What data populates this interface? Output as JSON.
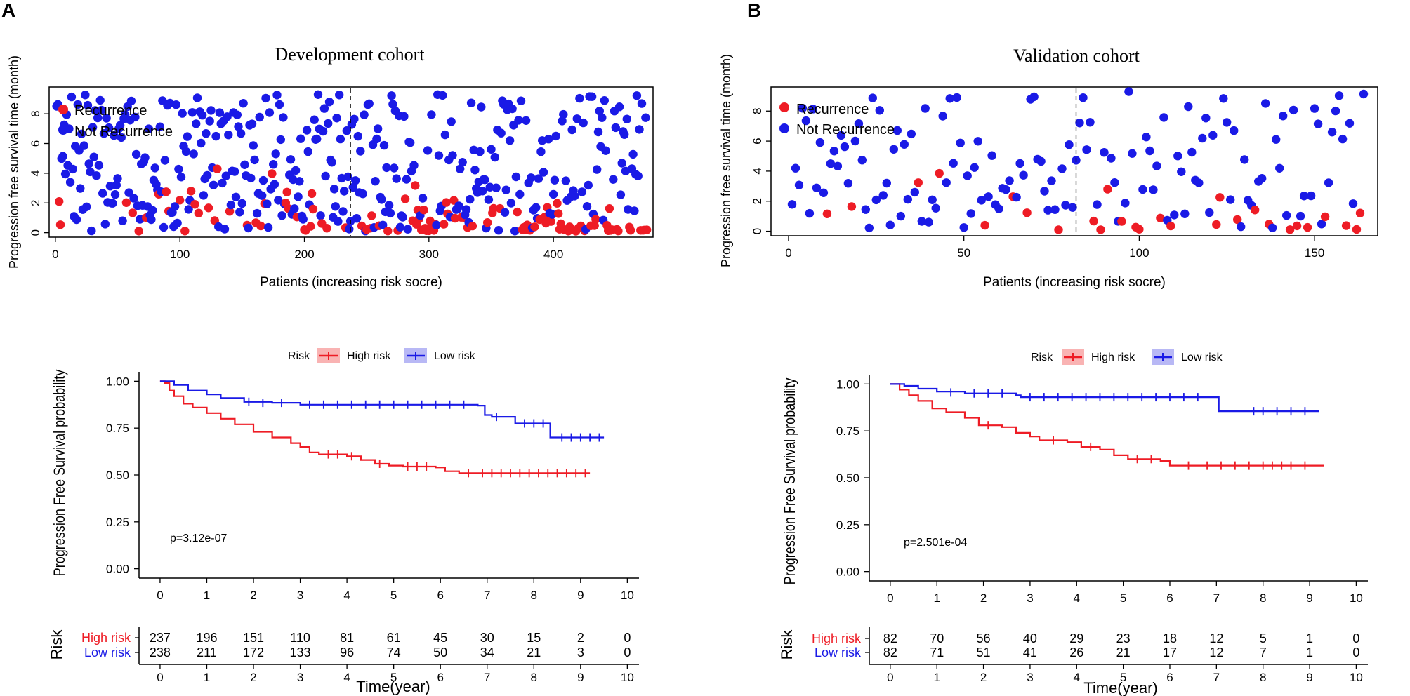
{
  "colors": {
    "red": "#ee1c25",
    "blue": "#1a1ae6",
    "axis": "#000000"
  },
  "panel_labels": [
    "A",
    "B"
  ],
  "risk_word": "Risk",
  "chart_data": [
    {
      "id": "A-scatter",
      "type": "scatter",
      "title": "Development cohort",
      "xlabel": "Patients (increasing risk socre)",
      "ylabel": "Progression free survival time (month)",
      "xlim": [
        -5,
        480
      ],
      "ylim": [
        -0.3,
        9.8
      ],
      "xticks": [
        0,
        100,
        200,
        300,
        400
      ],
      "yticks": [
        0,
        2,
        4,
        6,
        8
      ],
      "legend": [
        "Recurrence",
        "Not Recurrence"
      ],
      "cutoff": 237,
      "n": 475,
      "recurrence_rate": 0.2
    },
    {
      "id": "B-scatter",
      "type": "scatter",
      "title": "Validation cohort",
      "xlabel": "Patients (increasing risk socre)",
      "ylabel": "Progression free survival time (month)",
      "xlim": [
        -5,
        168
      ],
      "ylim": [
        -0.3,
        9.6
      ],
      "xticks": [
        0,
        50,
        100,
        150
      ],
      "yticks": [
        0,
        2,
        4,
        6,
        8
      ],
      "legend": [
        "Recurrence",
        "Not Recurrence"
      ],
      "cutoff": 82,
      "n": 164,
      "recurrence_rate": 0.18
    },
    {
      "id": "A-km",
      "type": "line",
      "legend_title": "Risk",
      "legend": [
        "High risk",
        "Low risk"
      ],
      "ylabel": "Progression Free Survival probability",
      "xlabel": "Time(year)",
      "xlim": [
        -0.45,
        10.25
      ],
      "ylim": [
        -0.05,
        1.05
      ],
      "xticks": [
        0,
        1,
        2,
        3,
        4,
        5,
        6,
        7,
        8,
        9,
        10
      ],
      "yticks": [
        "0.00",
        "0.25",
        "0.50",
        "0.75",
        "1.00"
      ],
      "p_value": "p=3.12e-07",
      "series": [
        {
          "name": "High risk",
          "color": "red",
          "points": [
            [
              0,
              1.0
            ],
            [
              0.1,
              0.99
            ],
            [
              0.2,
              0.95
            ],
            [
              0.3,
              0.92
            ],
            [
              0.5,
              0.88
            ],
            [
              0.7,
              0.86
            ],
            [
              1.0,
              0.83
            ],
            [
              1.3,
              0.8
            ],
            [
              1.6,
              0.77
            ],
            [
              2.0,
              0.73
            ],
            [
              2.4,
              0.7
            ],
            [
              2.8,
              0.67
            ],
            [
              3.0,
              0.65
            ],
            [
              3.2,
              0.62
            ],
            [
              3.4,
              0.61
            ],
            [
              4.0,
              0.6
            ],
            [
              4.3,
              0.58
            ],
            [
              4.6,
              0.56
            ],
            [
              4.9,
              0.55
            ],
            [
              5.2,
              0.545
            ],
            [
              5.9,
              0.54
            ],
            [
              6.1,
              0.52
            ],
            [
              6.4,
              0.51
            ],
            [
              9.2,
              0.51
            ]
          ],
          "censors": [
            [
              3.6,
              0.61
            ],
            [
              3.8,
              0.61
            ],
            [
              4.1,
              0.6
            ],
            [
              4.7,
              0.56
            ],
            [
              5.3,
              0.545
            ],
            [
              5.5,
              0.545
            ],
            [
              5.7,
              0.545
            ],
            [
              6.6,
              0.51
            ],
            [
              6.9,
              0.51
            ],
            [
              7.1,
              0.51
            ],
            [
              7.3,
              0.51
            ],
            [
              7.5,
              0.51
            ],
            [
              7.7,
              0.51
            ],
            [
              7.9,
              0.51
            ],
            [
              8.1,
              0.51
            ],
            [
              8.3,
              0.51
            ],
            [
              8.5,
              0.51
            ],
            [
              8.7,
              0.51
            ],
            [
              8.9,
              0.51
            ],
            [
              9.1,
              0.51
            ]
          ]
        },
        {
          "name": "Low risk",
          "color": "blue",
          "points": [
            [
              0,
              1.0
            ],
            [
              0.3,
              0.98
            ],
            [
              0.6,
              0.95
            ],
            [
              1.0,
              0.93
            ],
            [
              1.3,
              0.91
            ],
            [
              1.8,
              0.89
            ],
            [
              2.4,
              0.885
            ],
            [
              3.0,
              0.875
            ],
            [
              6.8,
              0.87
            ],
            [
              6.95,
              0.82
            ],
            [
              7.1,
              0.81
            ],
            [
              7.6,
              0.775
            ],
            [
              8.3,
              0.775
            ],
            [
              8.35,
              0.7
            ],
            [
              9.5,
              0.7
            ]
          ],
          "censors": [
            [
              1.9,
              0.89
            ],
            [
              2.2,
              0.885
            ],
            [
              2.6,
              0.885
            ],
            [
              3.2,
              0.875
            ],
            [
              3.5,
              0.875
            ],
            [
              3.8,
              0.875
            ],
            [
              4.1,
              0.875
            ],
            [
              4.4,
              0.875
            ],
            [
              4.7,
              0.875
            ],
            [
              5.0,
              0.875
            ],
            [
              5.3,
              0.875
            ],
            [
              5.6,
              0.875
            ],
            [
              5.9,
              0.875
            ],
            [
              6.2,
              0.875
            ],
            [
              6.5,
              0.875
            ],
            [
              7.2,
              0.81
            ],
            [
              7.8,
              0.775
            ],
            [
              8.0,
              0.775
            ],
            [
              8.2,
              0.775
            ],
            [
              8.6,
              0.7
            ],
            [
              8.8,
              0.7
            ],
            [
              9.0,
              0.7
            ],
            [
              9.2,
              0.7
            ],
            [
              9.4,
              0.7
            ]
          ]
        }
      ],
      "risk_table": {
        "times": [
          0,
          1,
          2,
          3,
          4,
          5,
          6,
          7,
          8,
          9,
          10
        ],
        "rows": [
          {
            "label": "High risk",
            "color": "red",
            "values": [
              237,
              196,
              151,
              110,
              81,
              61,
              45,
              30,
              15,
              2,
              0
            ]
          },
          {
            "label": "Low risk",
            "color": "blue",
            "values": [
              238,
              211,
              172,
              133,
              96,
              74,
              50,
              34,
              21,
              3,
              0
            ]
          }
        ]
      }
    },
    {
      "id": "B-km",
      "type": "line",
      "legend_title": "Risk",
      "legend": [
        "High risk",
        "Low risk"
      ],
      "ylabel": "Progression Free Survival probability",
      "xlabel": "Time(year)",
      "xlim": [
        -0.45,
        10.25
      ],
      "ylim": [
        -0.05,
        1.05
      ],
      "xticks": [
        0,
        1,
        2,
        3,
        4,
        5,
        6,
        7,
        8,
        9,
        10
      ],
      "yticks": [
        "0.00",
        "0.25",
        "0.50",
        "0.75",
        "1.00"
      ],
      "p_value": "p=2.501e-04",
      "series": [
        {
          "name": "High risk",
          "color": "red",
          "points": [
            [
              0,
              1.0
            ],
            [
              0.2,
              0.97
            ],
            [
              0.4,
              0.94
            ],
            [
              0.6,
              0.91
            ],
            [
              0.9,
              0.87
            ],
            [
              1.2,
              0.85
            ],
            [
              1.6,
              0.82
            ],
            [
              1.9,
              0.78
            ],
            [
              2.4,
              0.77
            ],
            [
              2.7,
              0.74
            ],
            [
              3.0,
              0.72
            ],
            [
              3.2,
              0.7
            ],
            [
              3.8,
              0.69
            ],
            [
              4.1,
              0.665
            ],
            [
              4.5,
              0.65
            ],
            [
              4.8,
              0.62
            ],
            [
              5.1,
              0.6
            ],
            [
              5.8,
              0.59
            ],
            [
              6.0,
              0.565
            ],
            [
              9.3,
              0.565
            ]
          ],
          "censors": [
            [
              2.1,
              0.78
            ],
            [
              3.5,
              0.7
            ],
            [
              4.3,
              0.665
            ],
            [
              5.3,
              0.6
            ],
            [
              5.6,
              0.6
            ],
            [
              6.4,
              0.565
            ],
            [
              6.8,
              0.565
            ],
            [
              7.1,
              0.565
            ],
            [
              7.4,
              0.565
            ],
            [
              7.7,
              0.565
            ],
            [
              8.0,
              0.565
            ],
            [
              8.2,
              0.565
            ],
            [
              8.4,
              0.565
            ],
            [
              8.6,
              0.565
            ],
            [
              8.9,
              0.565
            ]
          ]
        },
        {
          "name": "Low risk",
          "color": "blue",
          "points": [
            [
              0,
              1.0
            ],
            [
              0.3,
              0.99
            ],
            [
              0.6,
              0.975
            ],
            [
              1.0,
              0.96
            ],
            [
              1.6,
              0.95
            ],
            [
              2.7,
              0.94
            ],
            [
              2.8,
              0.93
            ],
            [
              7.0,
              0.93
            ],
            [
              7.05,
              0.855
            ],
            [
              9.2,
              0.855
            ]
          ],
          "censors": [
            [
              1.3,
              0.955
            ],
            [
              1.8,
              0.95
            ],
            [
              2.1,
              0.95
            ],
            [
              2.4,
              0.95
            ],
            [
              3.0,
              0.93
            ],
            [
              3.3,
              0.93
            ],
            [
              3.6,
              0.93
            ],
            [
              3.9,
              0.93
            ],
            [
              4.2,
              0.93
            ],
            [
              4.5,
              0.93
            ],
            [
              4.8,
              0.93
            ],
            [
              5.1,
              0.93
            ],
            [
              5.4,
              0.93
            ],
            [
              5.7,
              0.93
            ],
            [
              6.0,
              0.93
            ],
            [
              6.3,
              0.93
            ],
            [
              6.6,
              0.93
            ],
            [
              7.8,
              0.855
            ],
            [
              8.0,
              0.855
            ],
            [
              8.3,
              0.855
            ],
            [
              8.6,
              0.855
            ],
            [
              8.9,
              0.855
            ]
          ]
        }
      ],
      "risk_table": {
        "times": [
          0,
          1,
          2,
          3,
          4,
          5,
          6,
          7,
          8,
          9,
          10
        ],
        "rows": [
          {
            "label": "High risk",
            "color": "red",
            "values": [
              82,
              70,
              56,
              40,
              29,
              23,
              18,
              12,
              5,
              1,
              0
            ]
          },
          {
            "label": "Low risk",
            "color": "blue",
            "values": [
              82,
              71,
              51,
              41,
              26,
              21,
              17,
              12,
              7,
              1,
              0
            ]
          }
        ]
      }
    }
  ]
}
